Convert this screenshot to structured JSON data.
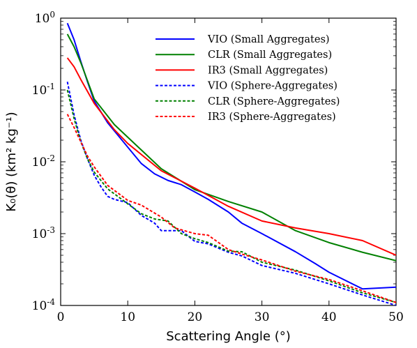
{
  "chart_data": {
    "type": "line",
    "title": "",
    "xlabel": "Scattering Angle (°)",
    "ylabel": "K₀(θ) (km² kg⁻¹)",
    "xlim": [
      0,
      50
    ],
    "ylim": [
      0.0001,
      1
    ],
    "yscale": "log",
    "xticks": [
      0,
      10,
      20,
      30,
      40,
      50
    ],
    "yticks": [
      {
        "value": 1,
        "label": "10^0"
      },
      {
        "value": 0.1,
        "label": "10^-1"
      },
      {
        "value": 0.01,
        "label": "10^-2"
      },
      {
        "value": 0.001,
        "label": "10^-3"
      },
      {
        "value": 0.0001,
        "label": "10^-4"
      }
    ],
    "grid": false,
    "legend_position": "top-right",
    "series": [
      {
        "name": "VIO (Small Aggregates)",
        "color": "#0000ff",
        "style": "solid",
        "x": [
          1,
          2,
          3,
          4,
          5,
          7,
          10,
          12,
          14,
          16,
          18,
          20,
          22,
          25,
          27,
          30,
          35,
          38,
          40,
          45,
          50
        ],
        "y": [
          0.85,
          0.5,
          0.25,
          0.13,
          0.07,
          0.035,
          0.016,
          0.0095,
          0.0068,
          0.0055,
          0.0048,
          0.0038,
          0.003,
          0.002,
          0.0014,
          0.001,
          0.00056,
          0.00038,
          0.00029,
          0.00017,
          0.00018
        ]
      },
      {
        "name": "CLR (Small Aggregates)",
        "color": "#008000",
        "style": "solid",
        "x": [
          1,
          2,
          3,
          5,
          8,
          10,
          15,
          20,
          25,
          30,
          35,
          40,
          45,
          50
        ],
        "y": [
          0.6,
          0.4,
          0.24,
          0.075,
          0.033,
          0.022,
          0.008,
          0.0041,
          0.0028,
          0.002,
          0.0011,
          0.00075,
          0.00055,
          0.00042
        ]
      },
      {
        "name": "IR3 (Small Aggregates)",
        "color": "#ff0000",
        "style": "solid",
        "x": [
          1,
          2,
          3,
          5,
          8,
          10,
          15,
          20,
          25,
          30,
          35,
          40,
          45,
          50
        ],
        "y": [
          0.28,
          0.21,
          0.14,
          0.065,
          0.028,
          0.018,
          0.0075,
          0.0043,
          0.0024,
          0.0015,
          0.0012,
          0.001,
          0.0008,
          0.0005
        ]
      },
      {
        "name": "VIO (Sphere-Aggregates)",
        "color": "#0000ff",
        "style": "dashed",
        "x": [
          1,
          2,
          3,
          4,
          5,
          6,
          7,
          8,
          10,
          12,
          14,
          15,
          16,
          18,
          20,
          22,
          25,
          27,
          30,
          35,
          40,
          45,
          50
        ],
        "y": [
          0.13,
          0.045,
          0.02,
          0.011,
          0.0065,
          0.0045,
          0.0033,
          0.003,
          0.0027,
          0.0018,
          0.0014,
          0.0011,
          0.0011,
          0.0011,
          0.00078,
          0.00072,
          0.00055,
          0.00049,
          0.00036,
          0.00028,
          0.0002,
          0.00014,
          0.0001
        ]
      },
      {
        "name": "CLR (Sphere-Aggregates)",
        "color": "#008000",
        "style": "dashed",
        "x": [
          1,
          2,
          3,
          4,
          5,
          7,
          10,
          12,
          14,
          16,
          18,
          20,
          22,
          25,
          27,
          30,
          35,
          40,
          45,
          50
        ],
        "y": [
          0.1,
          0.04,
          0.019,
          0.011,
          0.0072,
          0.0042,
          0.0026,
          0.0019,
          0.0016,
          0.0015,
          0.001,
          0.00085,
          0.00075,
          0.00057,
          0.00056,
          0.0004,
          0.00031,
          0.00022,
          0.00015,
          0.00011
        ]
      },
      {
        "name": "IR3 (Sphere-Aggregates)",
        "color": "#ff0000",
        "style": "dashed",
        "x": [
          1,
          2,
          3,
          4,
          5,
          7,
          10,
          12,
          15,
          17,
          20,
          22,
          25,
          27,
          30,
          35,
          40,
          45,
          50
        ],
        "y": [
          0.046,
          0.03,
          0.019,
          0.012,
          0.0085,
          0.0047,
          0.0029,
          0.0025,
          0.0017,
          0.0012,
          0.001,
          0.00095,
          0.0006,
          0.00052,
          0.00043,
          0.0003,
          0.00023,
          0.00016,
          0.00011
        ]
      }
    ]
  }
}
